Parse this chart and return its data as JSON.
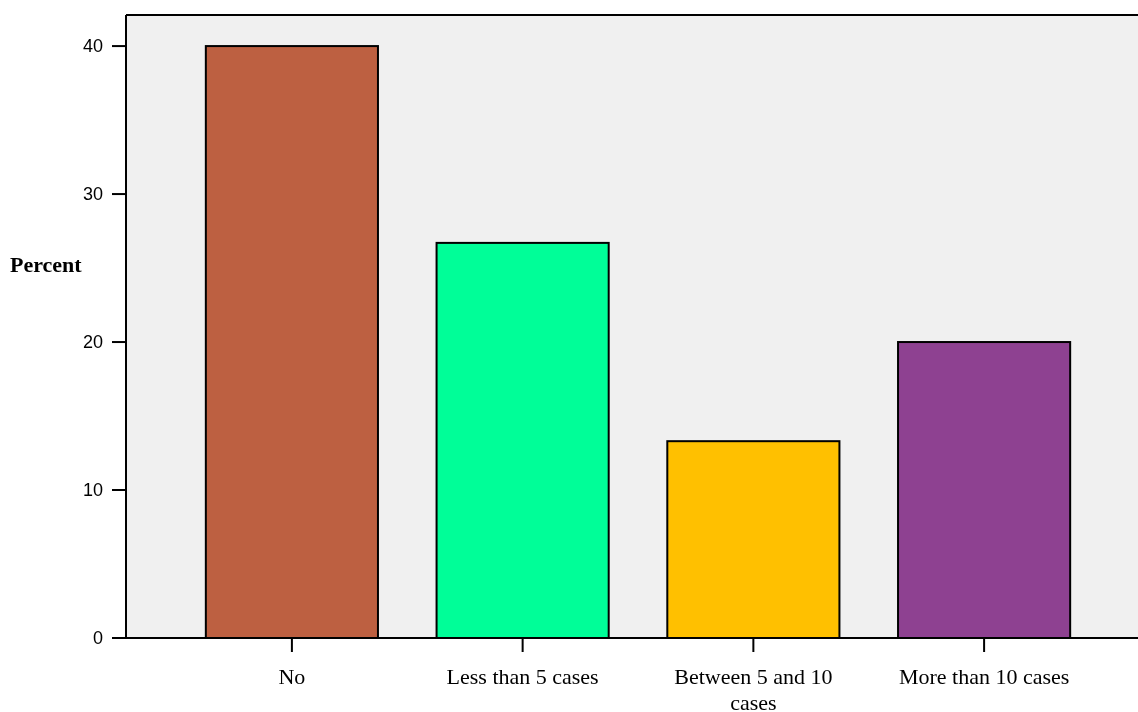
{
  "chart_data": {
    "type": "bar",
    "ylabel": "Percent",
    "categories": [
      "No",
      "Less than 5 cases",
      "Between 5 and 10 cases",
      "More than 10 cases"
    ],
    "values": [
      40,
      26.7,
      13.3,
      20
    ],
    "colors": [
      "#bd6041",
      "#00fe98",
      "#ffc000",
      "#8e4191"
    ],
    "ylim": [
      0,
      42.1
    ],
    "yticks": [
      0,
      10,
      20,
      30,
      40
    ]
  }
}
